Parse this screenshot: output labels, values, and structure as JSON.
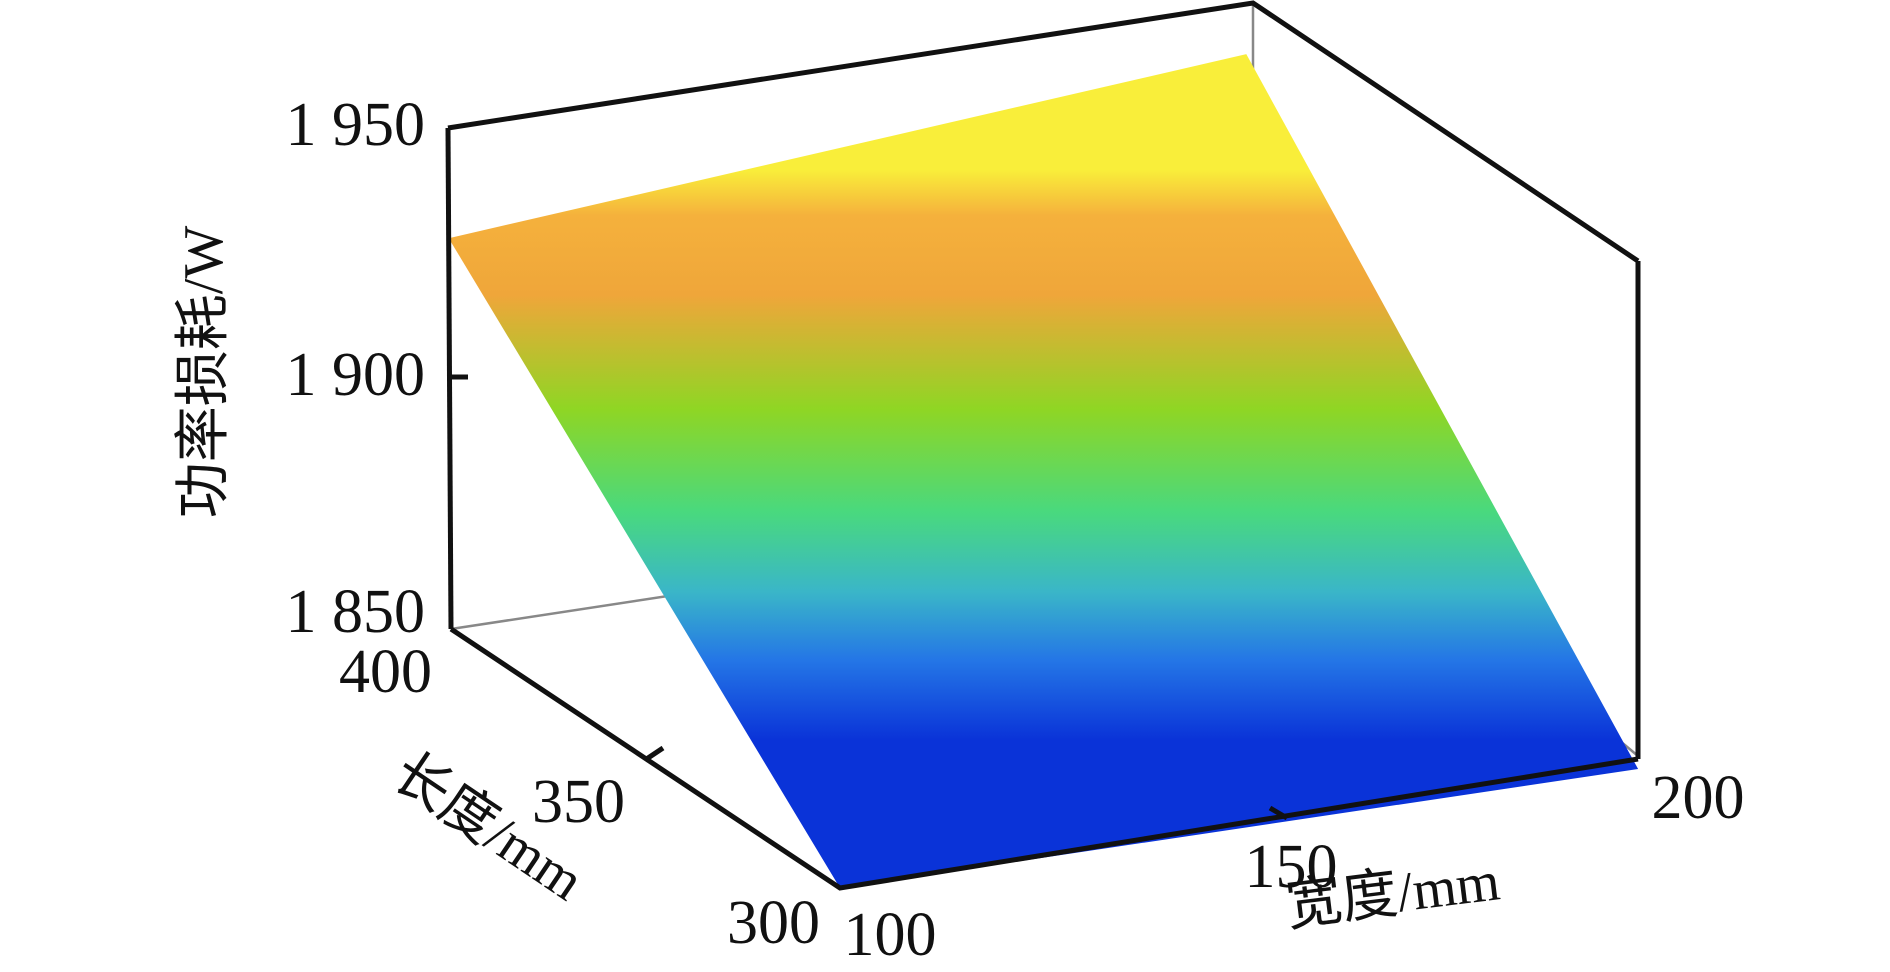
{
  "chart_data": {
    "type": "surface",
    "zlabel": "功率损耗/W",
    "ylabel": "长度/mm",
    "xlabel": "宽度/mm",
    "x_ticks": [
      "100",
      "150",
      "200"
    ],
    "y_ticks": [
      "300",
      "350",
      "400"
    ],
    "z_ticks": [
      "1 850",
      "1 900",
      "1 950"
    ],
    "xlim": [
      100,
      200
    ],
    "ylim": [
      300,
      400
    ],
    "zlim": [
      1850,
      1950
    ],
    "colormap": "parula",
    "corners": [
      {
        "x": 100,
        "y": 300,
        "z": 1850
      },
      {
        "x": 200,
        "y": 300,
        "z": 1848
      },
      {
        "x": 100,
        "y": 400,
        "z": 1928
      },
      {
        "x": 200,
        "y": 400,
        "z": 1939
      }
    ],
    "grid": false
  }
}
